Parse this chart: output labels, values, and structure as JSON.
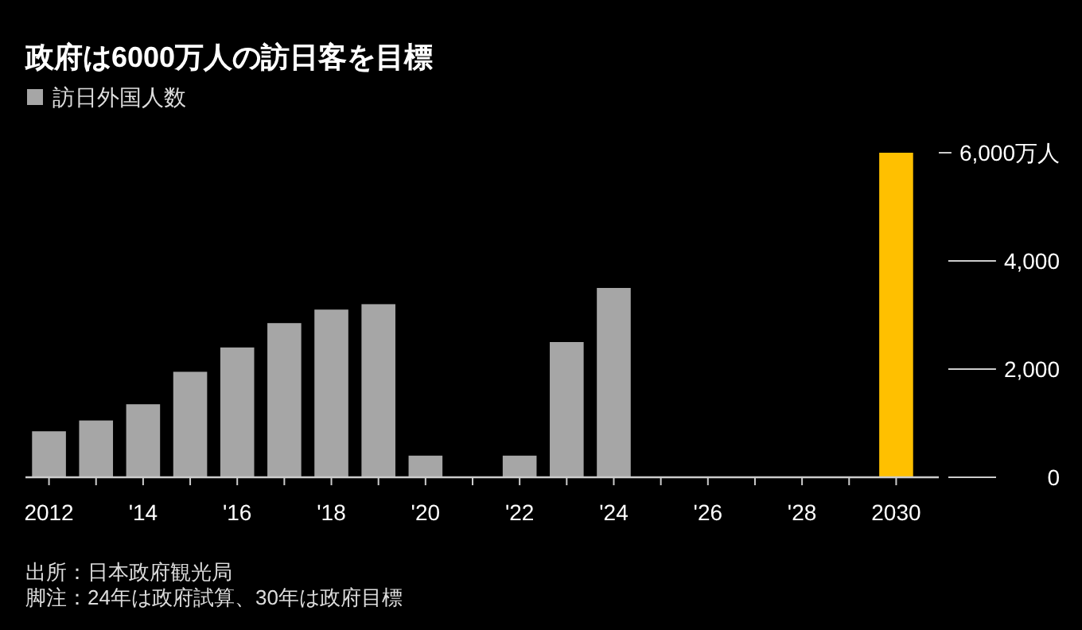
{
  "chart_data": {
    "type": "bar",
    "title": "政府は6000万人の訪日客を目標",
    "categories": [
      "2012",
      null,
      "'14",
      null,
      "'16",
      null,
      "'18",
      null,
      "'20",
      null,
      "'22",
      null,
      "'24",
      null,
      "'26",
      null,
      "'28",
      null,
      "2030"
    ],
    "series": [
      {
        "name": "訪日外国人数",
        "color": "#a6a6a6",
        "colors": [
          "#a6a6a6",
          "#a6a6a6",
          "#a6a6a6",
          "#a6a6a6",
          "#a6a6a6",
          "#a6a6a6",
          "#a6a6a6",
          "#a6a6a6",
          "#a6a6a6",
          "#a6a6a6",
          "#a6a6a6",
          "#a6a6a6",
          "#a6a6a6",
          "#a6a6a6",
          "#a6a6a6",
          "#a6a6a6",
          "#a6a6a6",
          "#a6a6a6",
          "#ffc000"
        ],
        "values": [
          850,
          1050,
          1350,
          1950,
          2400,
          2850,
          3100,
          3200,
          400,
          null,
          400,
          2500,
          3500,
          null,
          null,
          null,
          null,
          null,
          6000
        ]
      }
    ],
    "ylim": [
      0,
      6000
    ],
    "yticks": [
      0,
      {
        "value": 2000,
        "label": "2,000"
      },
      {
        "value": 4000,
        "label": "4,000"
      },
      {
        "value": 6000,
        "label": "6,000万人"
      }
    ],
    "legend": "top left",
    "grid": false,
    "annotations": [
      "出所：日本政府観光局",
      "脚注：24年は政府試算、30年は政府目標"
    ]
  }
}
